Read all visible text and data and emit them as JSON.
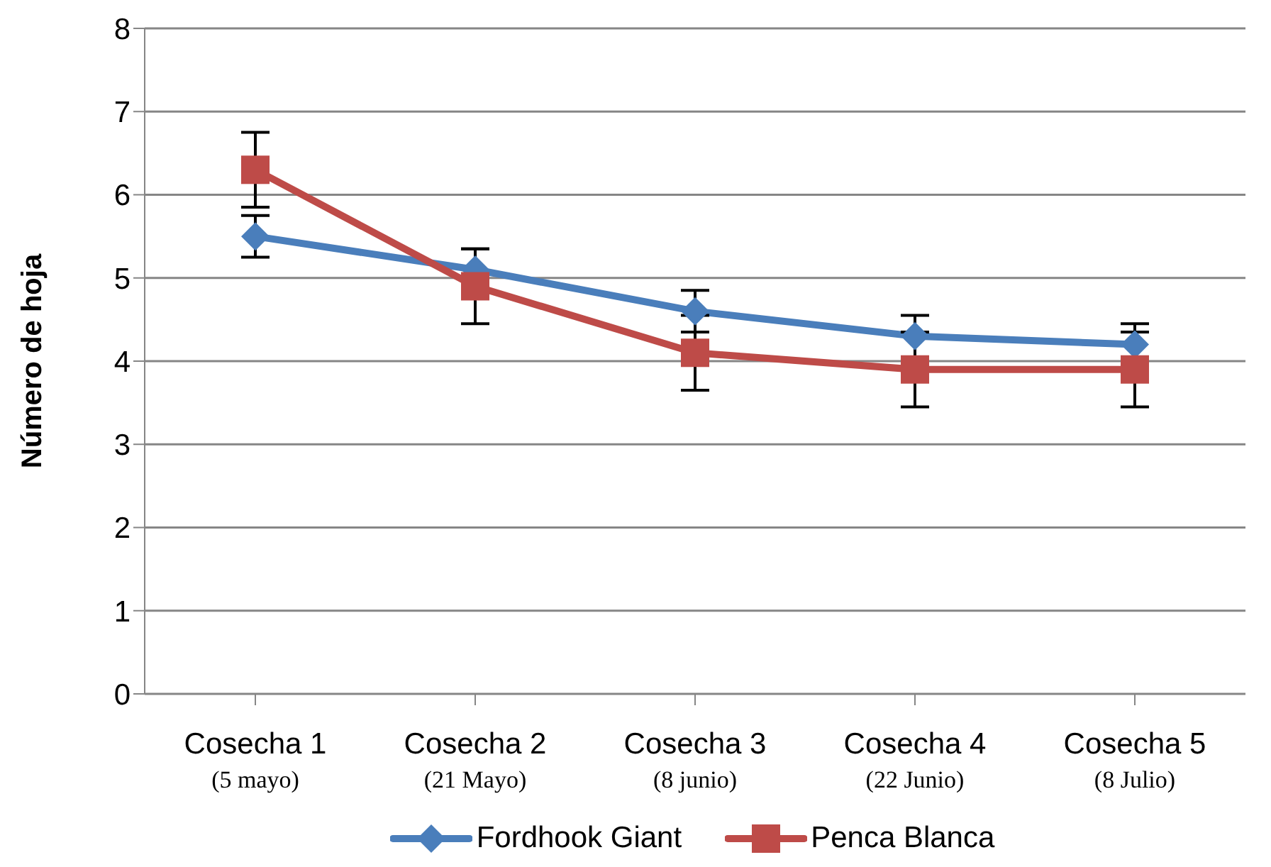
{
  "chart_data": {
    "type": "line",
    "ylabel": "Número de hoja",
    "categories": [
      "Cosecha 1\n(5 mayo)",
      "Cosecha 2\n(21 Mayo)",
      "Cosecha 3\n(8 junio)",
      "Cosecha 4\n(22 Junio)",
      "Cosecha 5\n(8 Julio)"
    ],
    "series": [
      {
        "name": "Fordhook Giant",
        "color": "#4a7ebb",
        "marker": "diamond",
        "values": [
          5.5,
          5.1,
          4.6,
          4.3,
          4.2
        ],
        "errors": [
          0.25,
          0.25,
          0.25,
          0.25,
          0.25
        ]
      },
      {
        "name": "Penca Blanca",
        "color": "#be4b48",
        "marker": "square",
        "values": [
          6.3,
          4.9,
          4.1,
          3.9,
          3.9
        ],
        "errors": [
          0.45,
          0.45,
          0.45,
          0.45,
          0.45
        ]
      }
    ],
    "ylim": [
      0,
      8
    ],
    "yticks": [
      0,
      1,
      2,
      3,
      4,
      5,
      6,
      7,
      8
    ],
    "grid": "y",
    "legend": "bottom"
  }
}
